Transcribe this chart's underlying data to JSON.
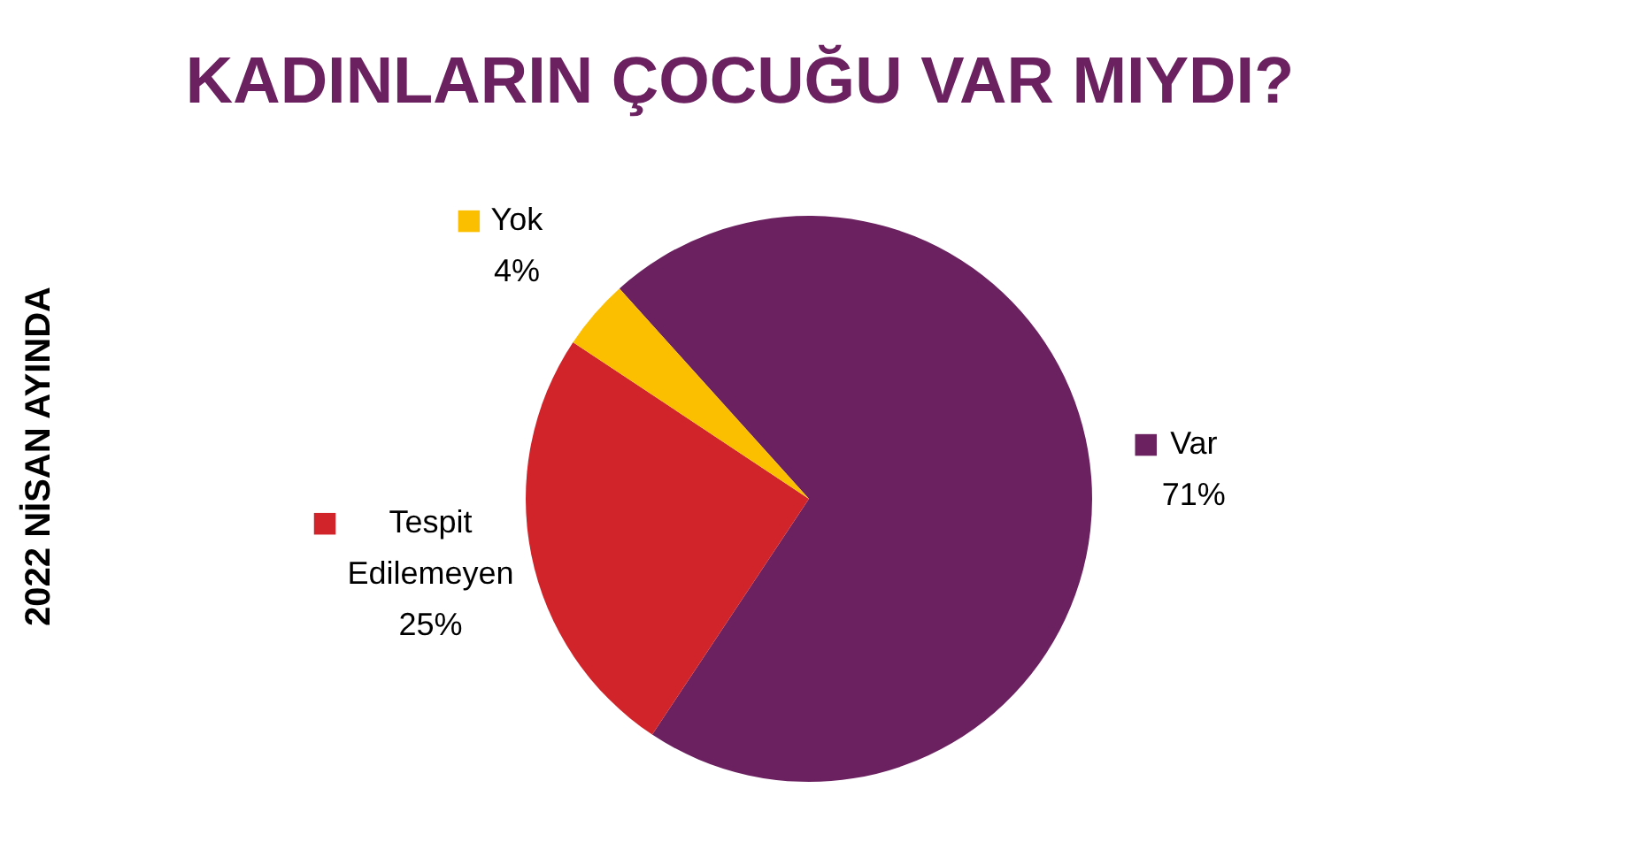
{
  "chart_data": {
    "type": "pie",
    "title": "KADINLARIN ÇOCUĞU VAR MIYDI?",
    "annotations": [
      "2022 NİSAN AYINDA"
    ],
    "categories": [
      "Var",
      "Tespit Edilemeyen",
      "Yok"
    ],
    "values": [
      71,
      25,
      4
    ],
    "colors": [
      "#6b2160",
      "#d0232a",
      "#fbbf00"
    ],
    "value_labels": [
      "71%",
      "25%",
      "4%"
    ],
    "legend": "left"
  }
}
